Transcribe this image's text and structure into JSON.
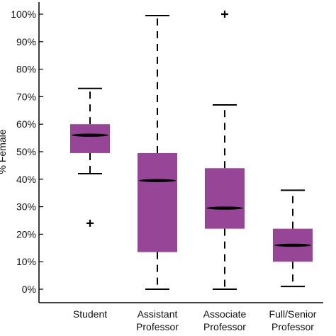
{
  "chart_data": {
    "type": "box",
    "ylabel": "% Female",
    "ylim": [
      0,
      100
    ],
    "yticks": [
      "0%",
      "10%",
      "20%",
      "30%",
      "40%",
      "50%",
      "60%",
      "70%",
      "80%",
      "90%",
      "100%"
    ],
    "categories": [
      [
        "Student"
      ],
      [
        "Assistant",
        "Professor"
      ],
      [
        "Associate",
        "Professor"
      ],
      [
        "Full/Senior",
        "Professor"
      ]
    ],
    "boxes": [
      {
        "whisker_low": 42,
        "q1": 49.5,
        "median": 56,
        "q3": 60,
        "whisker_high": 73,
        "outliers": [
          24
        ]
      },
      {
        "whisker_low": 0,
        "q1": 13.5,
        "median": 39.5,
        "q3": 49.5,
        "whisker_high": 99.5,
        "outliers": []
      },
      {
        "whisker_low": 0,
        "q1": 22,
        "median": 29.5,
        "q3": 44,
        "whisker_high": 67,
        "outliers": [
          100
        ]
      },
      {
        "whisker_low": 1,
        "q1": 10,
        "median": 16,
        "q3": 22,
        "whisker_high": 36,
        "outliers": []
      }
    ],
    "box_color": "#974597",
    "median_color": "#000000",
    "grid": false,
    "legend": "none"
  }
}
